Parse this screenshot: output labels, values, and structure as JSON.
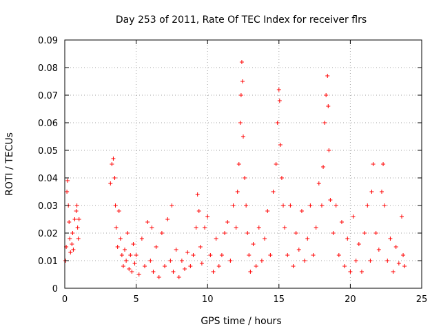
{
  "chart_data": {
    "type": "scatter",
    "title": "Day 253 of 2011, Rate Of TEC Index for receiver flrs",
    "xlabel": "GPS time / hours",
    "ylabel": "ROTI / TECUs",
    "xlim": [
      0,
      25
    ],
    "ylim": [
      0,
      0.09
    ],
    "xticks": [
      "0",
      "5",
      "10",
      "15",
      "20",
      "25"
    ],
    "yticks": [
      "0",
      "0.01",
      "0.02",
      "0.03",
      "0.04",
      "0.05",
      "0.06",
      "0.07",
      "0.08",
      "0.09"
    ],
    "grid": true,
    "legend": "none",
    "marker": "plus",
    "color": "#ff0000",
    "series": [
      {
        "points": [
          [
            0.05,
            0.01
          ],
          [
            0.1,
            0.015
          ],
          [
            0.15,
            0.035
          ],
          [
            0.2,
            0.039
          ],
          [
            0.25,
            0.03
          ],
          [
            0.3,
            0.024
          ],
          [
            0.35,
            0.018
          ],
          [
            0.4,
            0.013
          ],
          [
            0.5,
            0.016
          ],
          [
            0.55,
            0.02
          ],
          [
            0.6,
            0.014
          ],
          [
            0.7,
            0.025
          ],
          [
            0.8,
            0.028
          ],
          [
            0.85,
            0.03
          ],
          [
            0.9,
            0.022
          ],
          [
            0.95,
            0.018
          ],
          [
            1.0,
            0.025
          ],
          [
            3.2,
            0.038
          ],
          [
            3.3,
            0.045
          ],
          [
            3.4,
            0.047
          ],
          [
            3.5,
            0.04
          ],
          [
            3.55,
            0.03
          ],
          [
            3.6,
            0.022
          ],
          [
            3.7,
            0.015
          ],
          [
            3.8,
            0.028
          ],
          [
            3.9,
            0.018
          ],
          [
            4.0,
            0.012
          ],
          [
            4.1,
            0.008
          ],
          [
            4.2,
            0.014
          ],
          [
            4.3,
            0.01
          ],
          [
            4.4,
            0.02
          ],
          [
            4.5,
            0.007
          ],
          [
            4.6,
            0.012
          ],
          [
            4.7,
            0.006
          ],
          [
            4.8,
            0.016
          ],
          [
            4.9,
            0.009
          ],
          [
            5.0,
            0.012
          ],
          [
            5.2,
            0.005
          ],
          [
            5.4,
            0.018
          ],
          [
            5.6,
            0.008
          ],
          [
            5.8,
            0.024
          ],
          [
            6.0,
            0.01
          ],
          [
            6.1,
            0.022
          ],
          [
            6.2,
            0.006
          ],
          [
            6.4,
            0.015
          ],
          [
            6.6,
            0.004
          ],
          [
            6.8,
            0.02
          ],
          [
            7.0,
            0.008
          ],
          [
            7.2,
            0.025
          ],
          [
            7.4,
            0.01
          ],
          [
            7.5,
            0.03
          ],
          [
            7.6,
            0.006
          ],
          [
            7.8,
            0.014
          ],
          [
            8.0,
            0.004
          ],
          [
            8.2,
            0.01
          ],
          [
            8.4,
            0.007
          ],
          [
            8.6,
            0.013
          ],
          [
            8.8,
            0.008
          ],
          [
            9.0,
            0.012
          ],
          [
            9.2,
            0.022
          ],
          [
            9.3,
            0.034
          ],
          [
            9.4,
            0.028
          ],
          [
            9.5,
            0.015
          ],
          [
            9.6,
            0.009
          ],
          [
            9.8,
            0.022
          ],
          [
            10.0,
            0.026
          ],
          [
            10.2,
            0.012
          ],
          [
            10.4,
            0.006
          ],
          [
            10.6,
            0.018
          ],
          [
            10.8,
            0.008
          ],
          [
            11.0,
            0.012
          ],
          [
            11.2,
            0.02
          ],
          [
            11.4,
            0.024
          ],
          [
            11.6,
            0.01
          ],
          [
            11.8,
            0.03
          ],
          [
            12.0,
            0.022
          ],
          [
            12.1,
            0.035
          ],
          [
            12.2,
            0.045
          ],
          [
            12.3,
            0.06
          ],
          [
            12.35,
            0.07
          ],
          [
            12.4,
            0.082
          ],
          [
            12.45,
            0.075
          ],
          [
            12.5,
            0.055
          ],
          [
            12.6,
            0.04
          ],
          [
            12.7,
            0.03
          ],
          [
            12.8,
            0.02
          ],
          [
            12.9,
            0.012
          ],
          [
            13.0,
            0.006
          ],
          [
            13.2,
            0.016
          ],
          [
            13.4,
            0.008
          ],
          [
            13.6,
            0.022
          ],
          [
            13.8,
            0.01
          ],
          [
            14.0,
            0.018
          ],
          [
            14.2,
            0.028
          ],
          [
            14.4,
            0.012
          ],
          [
            14.6,
            0.035
          ],
          [
            14.8,
            0.045
          ],
          [
            14.9,
            0.06
          ],
          [
            15.0,
            0.072
          ],
          [
            15.05,
            0.068
          ],
          [
            15.1,
            0.052
          ],
          [
            15.2,
            0.04
          ],
          [
            15.3,
            0.03
          ],
          [
            15.4,
            0.022
          ],
          [
            15.6,
            0.012
          ],
          [
            15.8,
            0.03
          ],
          [
            16.0,
            0.008
          ],
          [
            16.2,
            0.02
          ],
          [
            16.4,
            0.014
          ],
          [
            16.6,
            0.028
          ],
          [
            16.8,
            0.01
          ],
          [
            17.0,
            0.018
          ],
          [
            17.2,
            0.03
          ],
          [
            17.4,
            0.012
          ],
          [
            17.6,
            0.022
          ],
          [
            17.8,
            0.038
          ],
          [
            18.0,
            0.03
          ],
          [
            18.1,
            0.044
          ],
          [
            18.2,
            0.06
          ],
          [
            18.3,
            0.07
          ],
          [
            18.4,
            0.077
          ],
          [
            18.45,
            0.066
          ],
          [
            18.5,
            0.05
          ],
          [
            18.6,
            0.032
          ],
          [
            18.8,
            0.02
          ],
          [
            19.0,
            0.03
          ],
          [
            19.2,
            0.012
          ],
          [
            19.4,
            0.024
          ],
          [
            19.6,
            0.008
          ],
          [
            19.8,
            0.018
          ],
          [
            20.0,
            0.006
          ],
          [
            20.2,
            0.026
          ],
          [
            20.4,
            0.01
          ],
          [
            20.6,
            0.016
          ],
          [
            20.8,
            0.006
          ],
          [
            21.0,
            0.02
          ],
          [
            21.2,
            0.03
          ],
          [
            21.4,
            0.01
          ],
          [
            21.5,
            0.035
          ],
          [
            21.6,
            0.045
          ],
          [
            21.8,
            0.02
          ],
          [
            22.0,
            0.014
          ],
          [
            22.2,
            0.035
          ],
          [
            22.3,
            0.045
          ],
          [
            22.4,
            0.03
          ],
          [
            22.6,
            0.01
          ],
          [
            22.8,
            0.018
          ],
          [
            23.0,
            0.006
          ],
          [
            23.2,
            0.015
          ],
          [
            23.4,
            0.009
          ],
          [
            23.6,
            0.026
          ],
          [
            23.7,
            0.012
          ],
          [
            23.8,
            0.008
          ]
        ]
      }
    ]
  }
}
